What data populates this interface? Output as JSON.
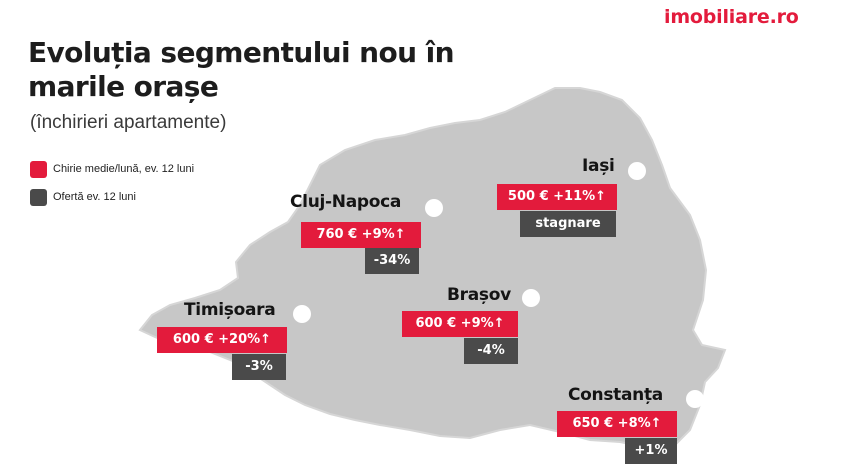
{
  "brand": {
    "logo_text": "imobiliare.ro",
    "accent_color": "#e31b3c"
  },
  "header": {
    "title_line1": "Evoluția segmentului nou în",
    "title_line2": "marile orașe",
    "subtitle": "(închirieri apartamente)"
  },
  "legend": {
    "items": [
      {
        "label": "Chirie medie/lună, ev. 12 luni",
        "color": "#e31b3c"
      },
      {
        "label": "Ofertă ev. 12 luni",
        "color": "#4a4a4a"
      }
    ]
  },
  "cities": [
    {
      "name": "Cluj-Napoca",
      "rent": "760 €  +9%↑",
      "offer": "-34%"
    },
    {
      "name": "Iași",
      "rent": "500 €  +11%↑",
      "offer": "stagnare"
    },
    {
      "name": "Timișoara",
      "rent": "600 €  +20%↑",
      "offer": "-3%"
    },
    {
      "name": "Brașov",
      "rent": "600 €  +9%↑",
      "offer": "-4%"
    },
    {
      "name": "Constanța",
      "rent": "650 €  +8%↑",
      "offer": "+1%"
    }
  ]
}
